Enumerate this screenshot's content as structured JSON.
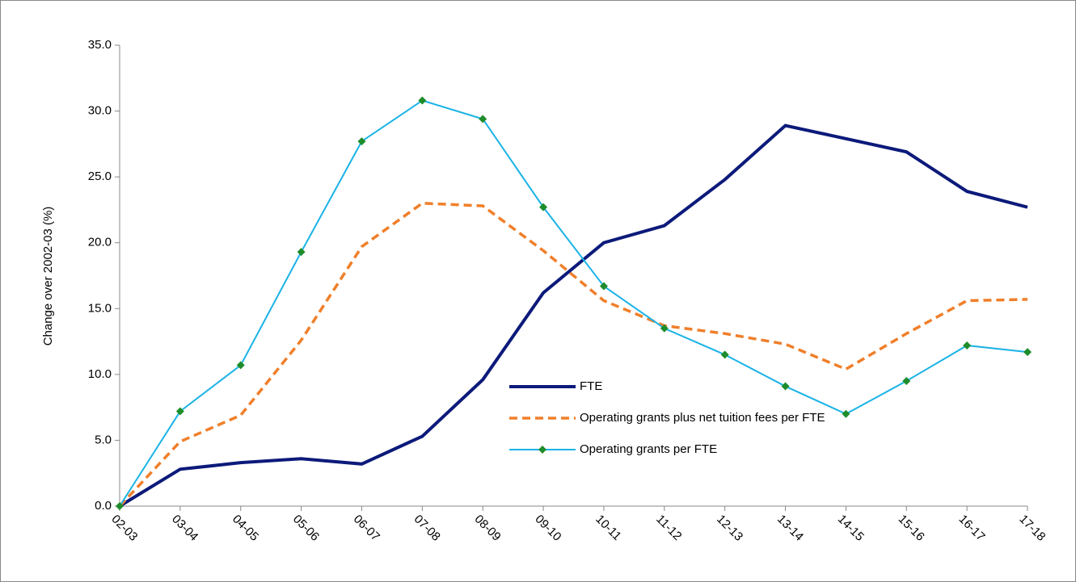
{
  "chart_data": {
    "type": "line",
    "y_label": "Change over 2002-03  (%)",
    "categories": [
      "02-03",
      "03-04",
      "04-05",
      "05-06",
      "06-07",
      "07-08",
      "08-09",
      "09-10",
      "10-11",
      "11-12",
      "12-13",
      "13-14",
      "14-15",
      "15-16",
      "16-17",
      "17-18"
    ],
    "series": [
      {
        "name": "FTE",
        "color": "#0c1a7a",
        "style": "solid",
        "values": [
          0,
          2.8,
          3.3,
          3.6,
          3.2,
          5.3,
          9.6,
          16.2,
          20.0,
          21.3,
          24.8,
          28.9,
          27.9,
          26.9,
          23.9,
          22.7
        ]
      },
      {
        "name": "Operating grants plus net tuition fees per FTE",
        "color": "#f07f2a",
        "style": "dashed",
        "values": [
          0,
          4.9,
          6.9,
          12.6,
          19.7,
          23.0,
          22.8,
          19.4,
          15.6,
          13.7,
          13.1,
          12.3,
          10.4,
          13.1,
          15.6,
          15.7
        ]
      },
      {
        "name": "Operating grants per FTE",
        "color": "#1ab3e6",
        "style": "solid",
        "marker_color": "#1e8c2a",
        "values": [
          0,
          7.2,
          10.7,
          19.3,
          27.7,
          30.8,
          29.4,
          22.7,
          16.7,
          13.5,
          11.5,
          9.1,
          7.0,
          9.5,
          12.2,
          11.7
        ]
      }
    ],
    "ylim": [
      0,
      35
    ],
    "yticks": [
      {
        "value": 0,
        "label": "0.0"
      },
      {
        "value": 5,
        "label": "5.0"
      },
      {
        "value": 10,
        "label": "10.0"
      },
      {
        "value": 15,
        "label": "15.0"
      },
      {
        "value": 20,
        "label": "20.0"
      },
      {
        "value": 25,
        "label": "25.0"
      },
      {
        "value": 30,
        "label": "30.0"
      },
      {
        "value": 35,
        "label": "35.0"
      }
    ],
    "grid": false
  }
}
